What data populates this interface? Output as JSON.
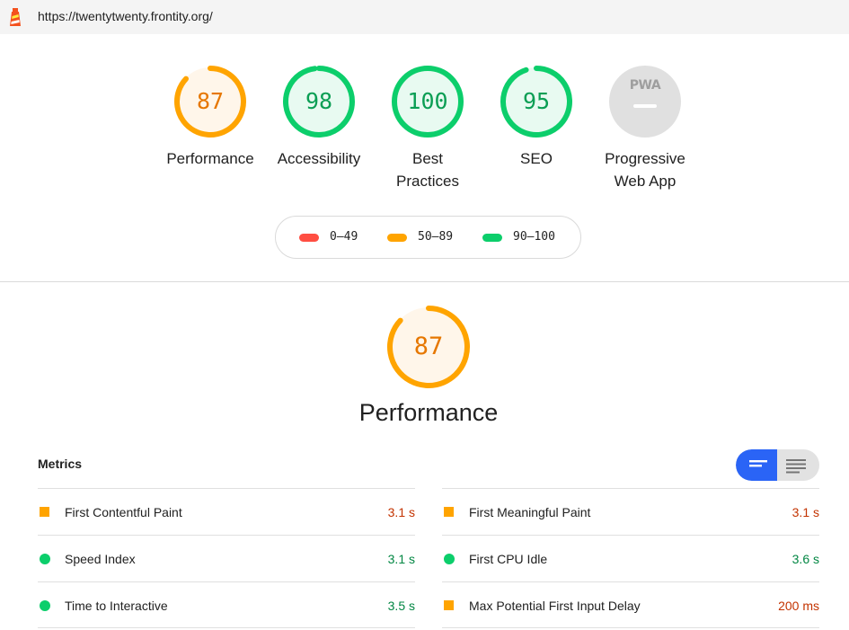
{
  "address_bar": {
    "url": "https://twentytwenty.frontity.org/",
    "icon": "lighthouse-icon"
  },
  "colors": {
    "orange": "#ffa400",
    "green": "#0cce6b",
    "red": "#ff4e42",
    "gray": "#e0e0e0",
    "accent_blue": "#2a64f6"
  },
  "gauges": [
    {
      "id": "performance",
      "score": "87",
      "label_lines": [
        "Performance"
      ],
      "color": "#ffa400",
      "fill": "#fff6ea",
      "text_color": "#e67700",
      "fraction": 0.87
    },
    {
      "id": "accessibility",
      "score": "98",
      "label_lines": [
        "Accessibility"
      ],
      "color": "#0cce6b",
      "fill": "#e8faf1",
      "text_color": "#0b9e54",
      "fraction": 0.98
    },
    {
      "id": "best-practices",
      "score": "100",
      "label_lines": [
        "Best",
        "Practices"
      ],
      "color": "#0cce6b",
      "fill": "#e8faf1",
      "text_color": "#0b9e54",
      "fraction": 1.0
    },
    {
      "id": "seo",
      "score": "95",
      "label_lines": [
        "SEO"
      ],
      "color": "#0cce6b",
      "fill": "#e8faf1",
      "text_color": "#0b9e54",
      "fraction": 0.95
    },
    {
      "id": "pwa",
      "score": "PWA",
      "label_lines": [
        "Progressive",
        "Web App"
      ],
      "color": "#e0e0e0",
      "fill": "#e0e0e0",
      "text_color": "#9e9e9e",
      "fraction": 0
    }
  ],
  "legend": [
    {
      "range": "0–49",
      "color": "#ff4e42"
    },
    {
      "range": "50–89",
      "color": "#ffa400"
    },
    {
      "range": "90–100",
      "color": "#0cce6b"
    }
  ],
  "performance_section": {
    "score": "87",
    "title": "Performance",
    "fraction": 0.87
  },
  "metrics": {
    "title": "Metrics",
    "view_toggle": [
      "compact-view-icon",
      "expanded-view-icon"
    ],
    "left": [
      {
        "name": "First Contentful Paint",
        "value": "3.1 s",
        "status": "average"
      },
      {
        "name": "Speed Index",
        "value": "3.1 s",
        "status": "pass"
      },
      {
        "name": "Time to Interactive",
        "value": "3.5 s",
        "status": "pass"
      }
    ],
    "right": [
      {
        "name": "First Meaningful Paint",
        "value": "3.1 s",
        "status": "average"
      },
      {
        "name": "First CPU Idle",
        "value": "3.6 s",
        "status": "pass"
      },
      {
        "name": "Max Potential First Input Delay",
        "value": "200 ms",
        "status": "average"
      }
    ]
  }
}
